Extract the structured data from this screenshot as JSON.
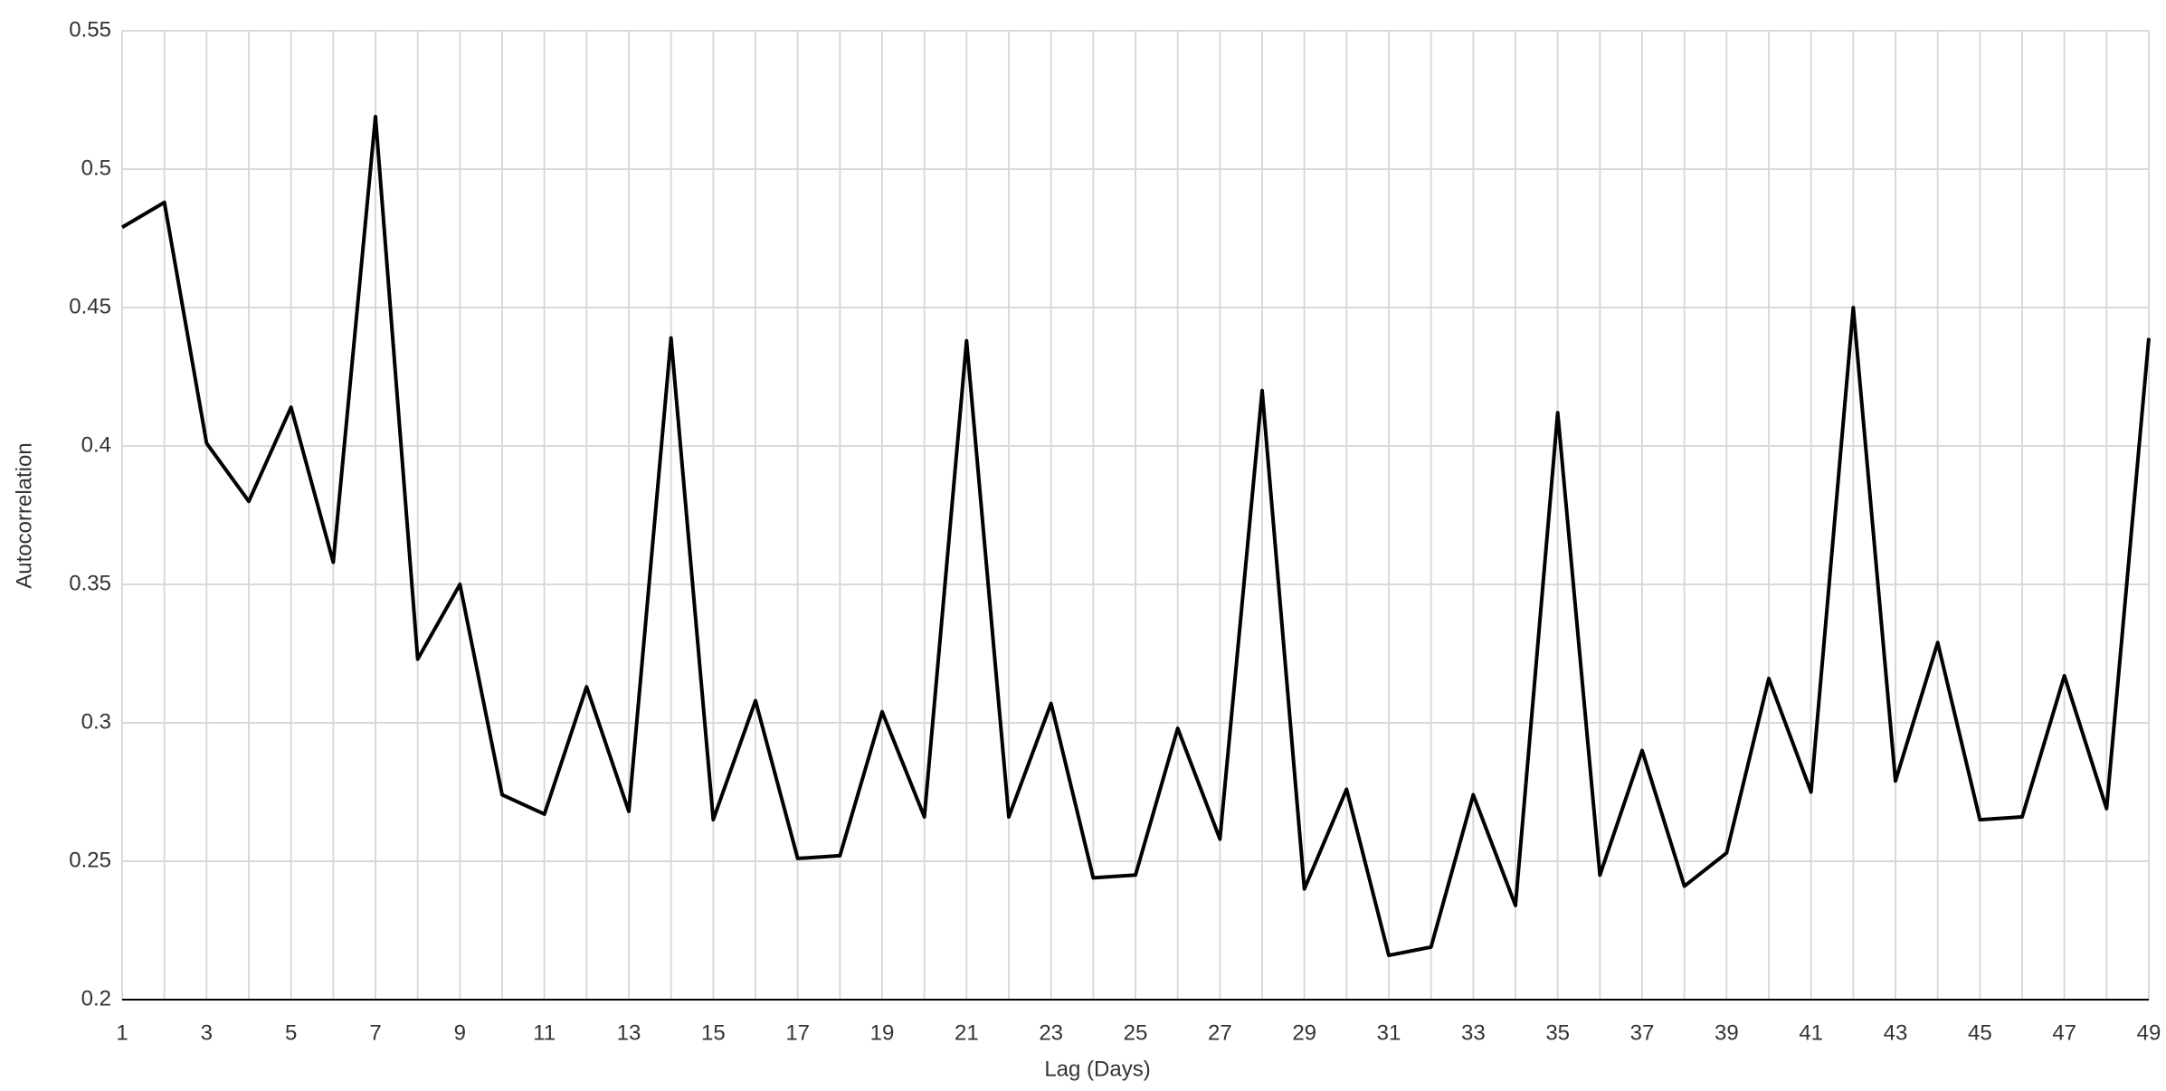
{
  "chart_data": {
    "type": "line",
    "x_label": "Lag (Days)",
    "y_label": "Autocorrelation",
    "categories": [
      "1",
      null,
      "3",
      null,
      "5",
      null,
      "7",
      null,
      "9",
      null,
      "11",
      null,
      "13",
      null,
      "15",
      null,
      "17",
      null,
      "19",
      null,
      "21",
      null,
      "23",
      null,
      "25",
      null,
      "27",
      null,
      "29",
      null,
      "31",
      null,
      "33",
      null,
      "35",
      null,
      "37",
      null,
      "39",
      null,
      "41",
      null,
      "43",
      null,
      "45",
      null,
      "47",
      null,
      "49"
    ],
    "series": [
      {
        "name": "Autocorrelation",
        "color": "#000000",
        "values": [
          0.479,
          0.488,
          0.401,
          0.38,
          0.414,
          0.358,
          0.519,
          0.323,
          0.35,
          0.274,
          0.267,
          0.313,
          0.268,
          0.439,
          0.265,
          0.308,
          0.251,
          0.252,
          0.304,
          0.266,
          0.438,
          0.266,
          0.307,
          0.244,
          0.245,
          0.298,
          0.258,
          0.42,
          0.24,
          0.276,
          0.216,
          0.219,
          0.274,
          0.234,
          0.412,
          0.245,
          0.29,
          0.241,
          0.253,
          0.316,
          0.275,
          0.45,
          0.279,
          0.329,
          0.265,
          0.266,
          0.317,
          0.269,
          0.439
        ]
      }
    ],
    "ylim": [
      0.2,
      0.55
    ],
    "yticks": [
      0.2,
      0.25,
      0.3,
      0.35,
      0.4,
      0.45,
      0.5,
      0.55
    ],
    "grid": true
  }
}
